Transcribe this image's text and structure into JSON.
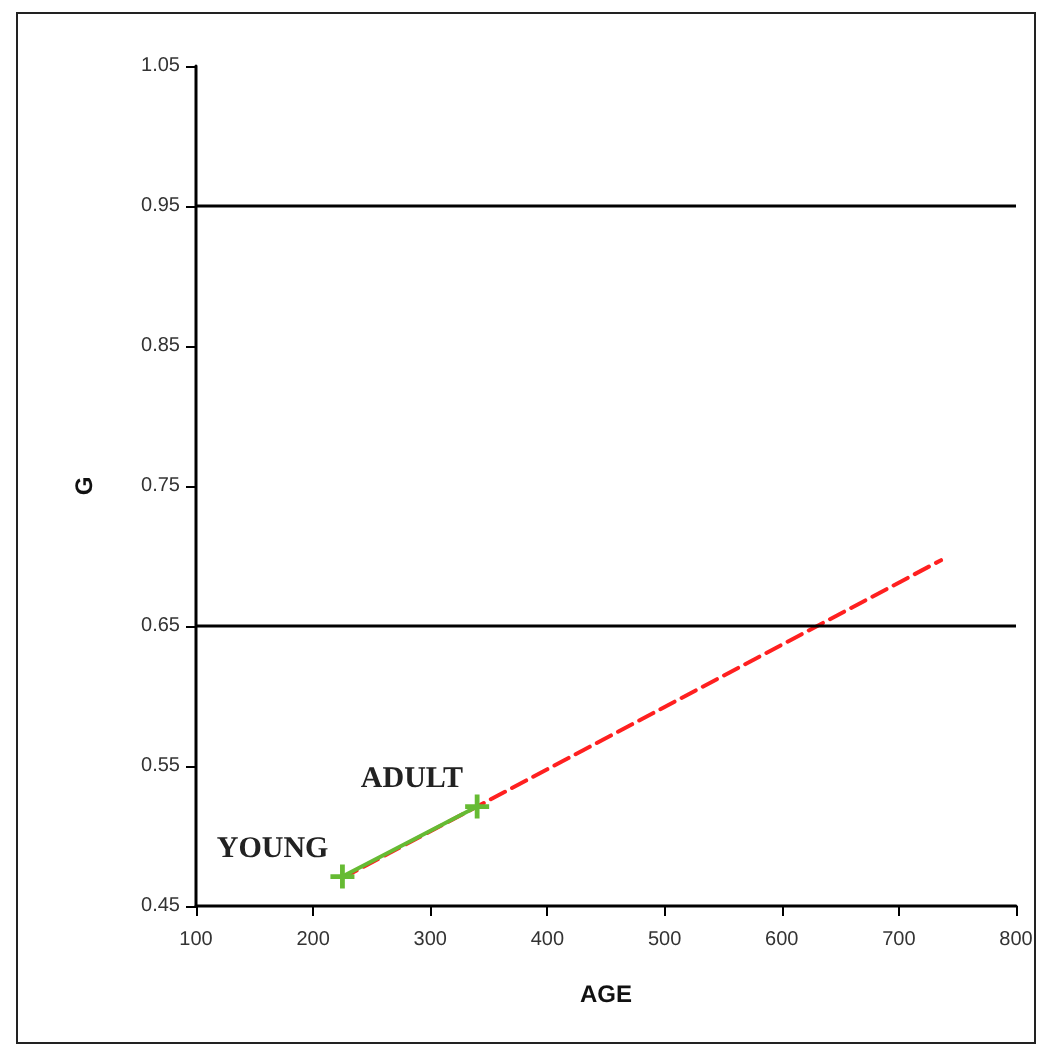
{
  "chart_data": {
    "type": "line",
    "xlabel": "AGE",
    "ylabel": "G",
    "xlim": [
      100,
      800
    ],
    "xticks": [
      100,
      200,
      300,
      400,
      500,
      600,
      700,
      800
    ],
    "ylim": [
      0.45,
      1.05
    ],
    "yticks": [
      0.45,
      0.55,
      0.65,
      0.75,
      0.85,
      0.95,
      1.05
    ],
    "grid": false,
    "series": [
      {
        "color": "#ff2020",
        "x": [
          225,
          736
        ],
        "values": [
          0.47,
          0.697
        ],
        "line_style": "dashed",
        "marker": "none"
      },
      {
        "color": "#66bb33",
        "x": [
          225,
          340
        ],
        "values": [
          0.471,
          0.521
        ],
        "line_style": "solid",
        "marker": "cross"
      }
    ],
    "ref_lines": [
      {
        "axis": "y",
        "value": 0.95,
        "color": "#000000"
      },
      {
        "axis": "y",
        "value": 0.65,
        "color": "#000000"
      }
    ],
    "annotations": [
      {
        "text": "YOUNG",
        "x": 225,
        "y": 0.471
      },
      {
        "text": "ADULT",
        "x": 340,
        "y": 0.521
      }
    ]
  }
}
